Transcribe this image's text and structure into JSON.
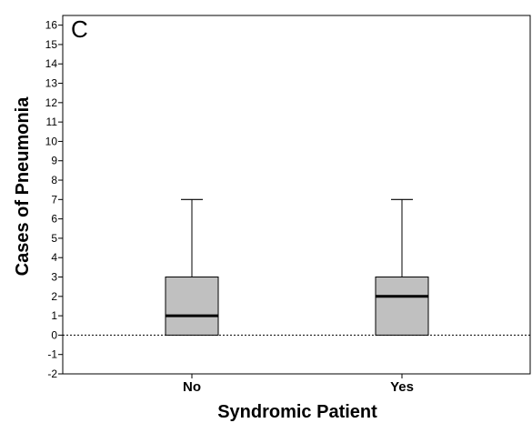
{
  "chart_data": {
    "type": "box",
    "panel_label": "C",
    "xlabel": "Syndromic Patient",
    "ylabel": "Cases of Pneumonia",
    "categories": [
      "No",
      "Yes"
    ],
    "ylim": [
      -2,
      16.5
    ],
    "y_ticks": [
      -2,
      -1,
      0,
      1,
      2,
      3,
      4,
      5,
      6,
      7,
      8,
      9,
      10,
      11,
      12,
      13,
      14,
      15,
      16
    ],
    "reference_line": {
      "y": 0,
      "style": "dotted"
    },
    "boxes": [
      {
        "category": "No",
        "min": 0,
        "q1": 0,
        "median": 1,
        "q3": 3,
        "max": 7
      },
      {
        "category": "Yes",
        "min": 0,
        "q1": 0,
        "median": 2,
        "q3": 3,
        "max": 7
      }
    ],
    "colors": {
      "box_fill": "#c0c0c0",
      "stroke": "#000000",
      "background": "#ffffff"
    },
    "grid": false,
    "legend": "none"
  }
}
